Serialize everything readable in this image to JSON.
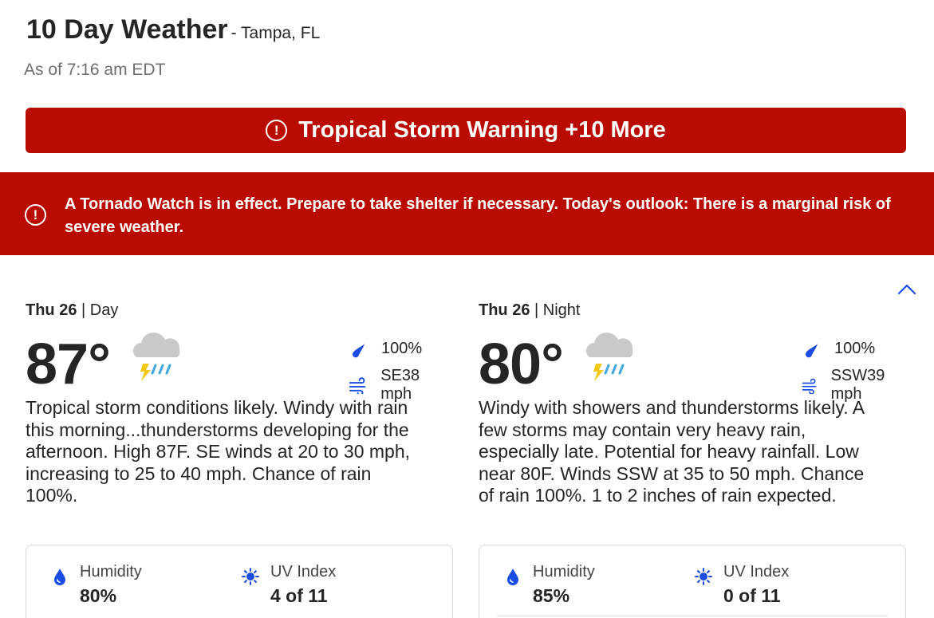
{
  "header": {
    "title": "10 Day Weather",
    "location": "- Tampa, FL",
    "as_of": "As of 7:16 am EDT"
  },
  "alert_button": {
    "label": "Tropical Storm Warning +10 More",
    "icon": "alert-circle-icon"
  },
  "banner": {
    "text": "A Tornado Watch is in effect. Prepare to take shelter if necessary. Today's outlook: There is a marginal risk of severe weather.",
    "icon": "alert-circle-icon"
  },
  "colors": {
    "alert_red": "#b90b00",
    "icon_blue": "#1b4de4",
    "text": "#252525"
  },
  "day": {
    "date": "Thu 26",
    "sep": "|",
    "part": "Day",
    "temp": "87°",
    "weather_icon": "thunderstorm-rain-icon",
    "precip": "100%",
    "wind": "SE38 mph",
    "narrative": "Tropical storm conditions likely. Windy with rain this morning...thunderstorms developing for the afternoon. High 87F. SE winds at 20 to 30 mph, increasing to 25 to 40 mph. Chance of rain 100%.",
    "humidity_label": "Humidity",
    "humidity": "80%",
    "uv_label": "UV Index",
    "uv": "4 of 11"
  },
  "night": {
    "date": "Thu 26",
    "sep": "|",
    "part": "Night",
    "temp": "80°",
    "weather_icon": "thunderstorm-rain-icon",
    "precip": "100%",
    "wind": "SSW39 mph",
    "narrative": "Windy with showers and thunderstorms likely. A few storms may contain very heavy rain, especially late. Potential for heavy rainfall. Low near 80F. Winds SSW at 35 to 50 mph. Chance of rain 100%. 1 to 2 inches of rain expected.",
    "humidity_label": "Humidity",
    "humidity": "85%",
    "uv_label": "UV Index",
    "uv": "0 of 11"
  }
}
